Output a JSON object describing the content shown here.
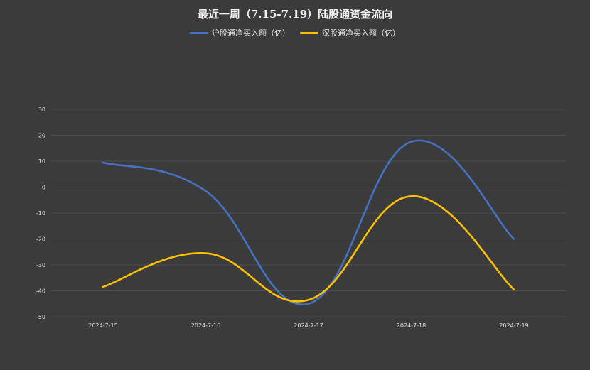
{
  "chart_data": {
    "type": "line",
    "title": "最近一周（7.15-7.19）陆股通资金流向",
    "categories": [
      "2024-7-15",
      "2024-7-16",
      "2024-7-17",
      "2024-7-18",
      "2024-7-19"
    ],
    "series": [
      {
        "name": "沪股通净买入额（亿）",
        "color": "#4472c4",
        "values": [
          9.5,
          -1.5,
          -45.0,
          17.5,
          -20.0
        ]
      },
      {
        "name": "深股通净买入额（亿）",
        "color": "#ffc000",
        "values": [
          -38.5,
          -25.5,
          -43.5,
          -3.5,
          -39.5
        ]
      }
    ],
    "ylim": [
      -50,
      30
    ],
    "yticks": [
      30,
      20,
      10,
      0,
      -10,
      -20,
      -30,
      -40,
      -50
    ],
    "grid": true,
    "legend_position": "top",
    "smooth": true
  }
}
